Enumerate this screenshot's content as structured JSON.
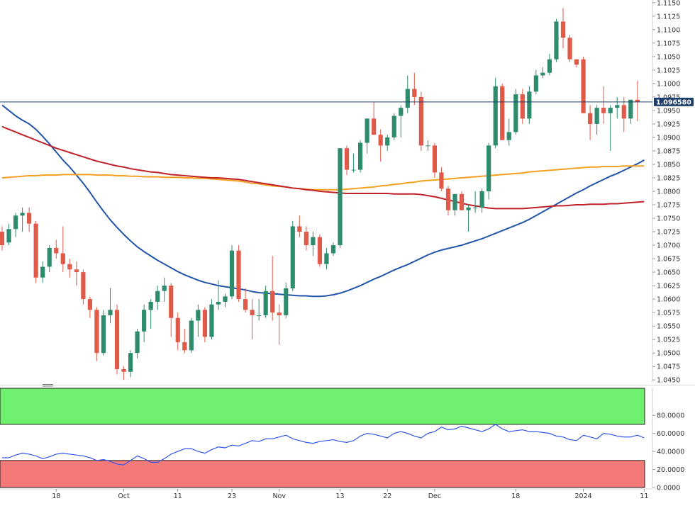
{
  "colors": {
    "bull": "#2e8b6e",
    "bear": "#e05a4a",
    "sma_fast": "#2255aa",
    "sma_mid": "#f5a020",
    "sma_slow": "#c0212a",
    "rsi_line": "#3355ee",
    "overbought_zone": "#6ef06e",
    "oversold_zone": "#f47a7a",
    "price_line": "#1e3e6a",
    "price_tag_bg": "#1e3e6a"
  },
  "chart_data": [
    {
      "type": "candlestick",
      "current_price_label": "1.096580",
      "current_price": 1.09658,
      "ylim": [
        1.0445,
        1.1155
      ],
      "y_ticks": [
        "1.1150",
        "1.1125",
        "1.1100",
        "1.1075",
        "1.1050",
        "1.1025",
        "1.1000",
        "1.0975",
        "1.0950",
        "1.0925",
        "1.0900",
        "1.0875",
        "1.0850",
        "1.0825",
        "1.0800",
        "1.0775",
        "1.0750",
        "1.0725",
        "1.0700",
        "1.0675",
        "1.0650",
        "1.0625",
        "1.0600",
        "1.0575",
        "1.0550",
        "1.0525",
        "1.0500",
        "1.0475",
        "1.0450"
      ],
      "x_ticks": [
        {
          "label": "18",
          "index": 8
        },
        {
          "label": "Oct",
          "index": 18
        },
        {
          "label": "11",
          "index": 26
        },
        {
          "label": "23",
          "index": 34
        },
        {
          "label": "Nov",
          "index": 41
        },
        {
          "label": "13",
          "index": 50
        },
        {
          "label": "22",
          "index": 57
        },
        {
          "label": "Dec",
          "index": 64
        },
        {
          "label": "18",
          "index": 76
        },
        {
          "label": "2024",
          "index": 86
        },
        {
          "label": "11",
          "index": 95
        }
      ],
      "candles": [
        [
          1.0725,
          1.0735,
          1.069,
          1.07
        ],
        [
          1.0705,
          1.074,
          1.07,
          1.073
        ],
        [
          1.073,
          1.076,
          1.0715,
          1.0755
        ],
        [
          1.0755,
          1.077,
          1.0725,
          1.076
        ],
        [
          1.076,
          1.077,
          1.0725,
          1.074
        ],
        [
          1.074,
          1.0745,
          1.063,
          1.064
        ],
        [
          1.064,
          1.067,
          1.063,
          1.066
        ],
        [
          1.066,
          1.07,
          1.065,
          1.0695
        ],
        [
          1.0695,
          1.071,
          1.0675,
          1.0685
        ],
        [
          1.0685,
          1.0735,
          1.065,
          1.0665
        ],
        [
          1.0665,
          1.0675,
          1.064,
          1.0655
        ],
        [
          1.0655,
          1.067,
          1.0625,
          1.065
        ],
        [
          1.065,
          1.0655,
          1.059,
          1.06
        ],
        [
          1.06,
          1.0605,
          1.0565,
          1.058
        ],
        [
          1.058,
          1.0585,
          1.0485,
          1.05
        ],
        [
          1.05,
          1.058,
          1.0495,
          1.057
        ],
        [
          1.057,
          1.062,
          1.0555,
          1.058
        ],
        [
          1.058,
          1.059,
          1.046,
          1.047
        ],
        [
          1.047,
          1.0475,
          1.045,
          1.0465
        ],
        [
          1.0465,
          1.0505,
          1.0455,
          1.05
        ],
        [
          1.05,
          1.0545,
          1.049,
          1.054
        ],
        [
          1.054,
          1.059,
          1.052,
          1.058
        ],
        [
          1.058,
          1.06,
          1.0545,
          1.0595
        ],
        [
          1.0595,
          1.0625,
          1.058,
          1.0615
        ],
        [
          1.0615,
          1.064,
          1.0595,
          1.0625
        ],
        [
          1.0625,
          1.063,
          1.053,
          1.0565
        ],
        [
          1.0565,
          1.0575,
          1.0505,
          1.052
        ],
        [
          1.052,
          1.0545,
          1.05,
          1.0505
        ],
        [
          1.0505,
          1.0565,
          1.05,
          1.056
        ],
        [
          1.056,
          1.059,
          1.053,
          1.058
        ],
        [
          1.058,
          1.0585,
          1.052,
          1.053
        ],
        [
          1.053,
          1.06,
          1.0525,
          1.059
        ],
        [
          1.059,
          1.0635,
          1.058,
          1.0595
        ],
        [
          1.0595,
          1.061,
          1.0585,
          1.0605
        ],
        [
          1.0605,
          1.07,
          1.06,
          1.069
        ],
        [
          1.069,
          1.07,
          1.0595,
          1.06
        ],
        [
          1.06,
          1.062,
          1.0575,
          1.058
        ],
        [
          1.058,
          1.06,
          1.0525,
          1.057
        ],
        [
          1.057,
          1.06,
          1.056,
          1.057
        ],
        [
          1.057,
          1.0625,
          1.0565,
          1.0615
        ],
        [
          1.0615,
          1.068,
          1.056,
          1.0575
        ],
        [
          1.0575,
          1.059,
          1.0515,
          1.057
        ],
        [
          1.057,
          1.063,
          1.0565,
          1.062
        ],
        [
          1.062,
          1.0745,
          1.0615,
          1.0735
        ],
        [
          1.0735,
          1.0755,
          1.0715,
          1.0725
        ],
        [
          1.0725,
          1.0735,
          1.069,
          1.07
        ],
        [
          1.07,
          1.0725,
          1.068,
          1.0715
        ],
        [
          1.0715,
          1.072,
          1.066,
          1.0665
        ],
        [
          1.0665,
          1.0695,
          1.0655,
          1.0685
        ],
        [
          1.0685,
          1.0705,
          1.068,
          1.07
        ],
        [
          1.07,
          1.088,
          1.0695,
          1.088
        ],
        [
          1.088,
          1.0885,
          1.083,
          1.084
        ],
        [
          1.084,
          1.087,
          1.0835,
          1.084
        ],
        [
          1.084,
          1.0895,
          1.0835,
          1.089
        ],
        [
          1.089,
          1.0935,
          1.087,
          1.0935
        ],
        [
          1.0935,
          1.0965,
          1.0905,
          1.0905
        ],
        [
          1.0905,
          1.0915,
          1.0855,
          1.0885
        ],
        [
          1.0885,
          1.0905,
          1.0875,
          1.09
        ],
        [
          1.09,
          1.0945,
          1.0895,
          1.094
        ],
        [
          1.094,
          1.096,
          1.09,
          1.0955
        ],
        [
          1.0955,
          1.1015,
          1.0945,
          1.099
        ],
        [
          1.099,
          1.102,
          1.096,
          1.0975
        ],
        [
          1.0975,
          1.0985,
          1.0875,
          1.0885
        ],
        [
          1.0885,
          1.0895,
          1.0875,
          1.0885
        ],
        [
          1.0885,
          1.089,
          1.0825,
          1.0835
        ],
        [
          1.0835,
          1.0845,
          1.08,
          1.0805
        ],
        [
          1.0805,
          1.081,
          1.0755,
          1.0765
        ],
        [
          1.0765,
          1.0795,
          1.0755,
          1.0795
        ],
        [
          1.0795,
          1.08,
          1.0765,
          1.0765
        ],
        [
          1.0765,
          1.0775,
          1.0725,
          1.077
        ],
        [
          1.077,
          1.08,
          1.076,
          1.077
        ],
        [
          1.077,
          1.0805,
          1.076,
          1.08
        ],
        [
          1.08,
          1.089,
          1.0785,
          1.0885
        ],
        [
          1.0885,
          1.101,
          1.088,
          1.0995
        ],
        [
          1.0995,
          1.1,
          1.0895,
          1.0895
        ],
        [
          1.0895,
          1.0935,
          1.0885,
          1.091
        ],
        [
          1.091,
          1.099,
          1.0905,
          1.098
        ],
        [
          1.098,
          1.099,
          1.0925,
          1.0935
        ],
        [
          1.0935,
          1.0995,
          1.0925,
          1.0985
        ],
        [
          1.0985,
          1.1025,
          1.098,
          1.1015
        ],
        [
          1.1015,
          1.103,
          1.101,
          1.102
        ],
        [
          1.102,
          1.1055,
          1.1015,
          1.1045
        ],
        [
          1.1045,
          1.112,
          1.104,
          1.1115
        ],
        [
          1.1115,
          1.114,
          1.1065,
          1.1085
        ],
        [
          1.1085,
          1.109,
          1.104,
          1.1045
        ],
        [
          1.1045,
          1.1045,
          1.103,
          1.1035
        ],
        [
          1.1045,
          1.105,
          1.0945,
          1.0945
        ],
        [
          1.0945,
          1.096,
          1.0895,
          1.0925
        ],
        [
          1.0925,
          1.096,
          1.0905,
          1.0955
        ],
        [
          1.0955,
          1.0995,
          1.0925,
          1.0945
        ],
        [
          1.0945,
          1.096,
          1.0875,
          1.0955
        ],
        [
          1.0955,
          1.0975,
          1.0935,
          1.096
        ],
        [
          1.096,
          1.0975,
          1.091,
          1.0935
        ],
        [
          1.0935,
          1.097,
          1.0925,
          1.097
        ],
        [
          1.097,
          1.1005,
          1.093,
          1.0966
        ]
      ],
      "series": [
        {
          "name": "",
          "color_key": "sma_fast",
          "values": [
            1.096,
            1.095,
            1.094,
            1.0932,
            1.0925,
            1.0915,
            1.0902,
            1.0888,
            1.0873,
            1.0858,
            1.0845,
            1.083,
            1.0815,
            1.0798,
            1.078,
            1.0763,
            1.0747,
            1.0733,
            1.072,
            1.0708,
            1.0697,
            1.0688,
            1.068,
            1.0672,
            1.0665,
            1.0658,
            1.0651,
            1.0645,
            1.064,
            1.0635,
            1.0631,
            1.0628,
            1.0625,
            1.0623,
            1.0621,
            1.0619,
            1.0617,
            1.0614,
            1.0612,
            1.0611,
            1.061,
            1.0609,
            1.0608,
            1.0607,
            1.0606,
            1.0606,
            1.0605,
            1.0605,
            1.0606,
            1.0608,
            1.0611,
            1.0615,
            1.062,
            1.0625,
            1.0631,
            1.0637,
            1.0642,
            1.0648,
            1.0654,
            1.0659,
            1.0664,
            1.067,
            1.0676,
            1.0682,
            1.0687,
            1.0691,
            1.0694,
            1.0697,
            1.07,
            1.0704,
            1.0708,
            1.0712,
            1.0717,
            1.0722,
            1.0727,
            1.0732,
            1.0737,
            1.0742,
            1.0748,
            1.0755,
            1.0762,
            1.0769,
            1.0776,
            1.0783,
            1.079,
            1.0797,
            1.0803,
            1.081,
            1.0816,
            1.0822,
            1.0828,
            1.0833,
            1.0839,
            1.0845,
            1.0851,
            1.0858
          ]
        },
        {
          "name": "",
          "color_key": "sma_mid",
          "values": [
            1.0825,
            1.0826,
            1.0827,
            1.0828,
            1.0829,
            1.0829,
            1.083,
            1.083,
            1.083,
            1.0831,
            1.0831,
            1.0831,
            1.0831,
            1.0831,
            1.083,
            1.083,
            1.083,
            1.0829,
            1.0829,
            1.0828,
            1.0828,
            1.0827,
            1.0827,
            1.0827,
            1.0826,
            1.0826,
            1.0826,
            1.0825,
            1.0825,
            1.0824,
            1.0824,
            1.0823,
            1.0822,
            1.0821,
            1.082,
            1.0819,
            1.0817,
            1.0815,
            1.0814,
            1.0812,
            1.081,
            1.0809,
            1.0808,
            1.0806,
            1.0805,
            1.0804,
            1.0803,
            1.0803,
            1.0803,
            1.0803,
            1.0803,
            1.0804,
            1.0805,
            1.0806,
            1.0807,
            1.0808,
            1.081,
            1.0811,
            1.0813,
            1.0814,
            1.0816,
            1.0817,
            1.0819,
            1.082,
            1.0821,
            1.0822,
            1.0823,
            1.0824,
            1.0825,
            1.0826,
            1.0827,
            1.0828,
            1.0829,
            1.083,
            1.0831,
            1.0832,
            1.0833,
            1.0834,
            1.0836,
            1.0837,
            1.0838,
            1.0839,
            1.084,
            1.0841,
            1.0842,
            1.0843,
            1.0844,
            1.0845,
            1.0845,
            1.0846,
            1.0846,
            1.0846,
            1.0847,
            1.0847,
            1.0847,
            1.0847
          ]
        },
        {
          "name": "",
          "color_key": "sma_slow",
          "values": [
            1.092,
            1.0915,
            1.091,
            1.0905,
            1.09,
            1.0895,
            1.089,
            1.0885,
            1.088,
            1.0876,
            1.0872,
            1.0868,
            1.0864,
            1.086,
            1.0856,
            1.0853,
            1.085,
            1.0847,
            1.0845,
            1.0842,
            1.084,
            1.0838,
            1.0836,
            1.0835,
            1.0833,
            1.0831,
            1.083,
            1.0829,
            1.0828,
            1.0827,
            1.0826,
            1.0825,
            1.0825,
            1.0824,
            1.0823,
            1.0822,
            1.082,
            1.0818,
            1.0816,
            1.0814,
            1.0812,
            1.081,
            1.0808,
            1.0806,
            1.0805,
            1.0803,
            1.0802,
            1.08,
            1.0799,
            1.0798,
            1.0797,
            1.0796,
            1.0796,
            1.0796,
            1.0796,
            1.0796,
            1.0796,
            1.0796,
            1.0795,
            1.0795,
            1.0795,
            1.0795,
            1.0794,
            1.0792,
            1.079,
            1.0787,
            1.0784,
            1.0781,
            1.0778,
            1.0775,
            1.0773,
            1.0771,
            1.0769,
            1.0768,
            1.0768,
            1.0768,
            1.0768,
            1.0768,
            1.0769,
            1.077,
            1.0771,
            1.0772,
            1.0773,
            1.0773,
            1.0774,
            1.0775,
            1.0775,
            1.0776,
            1.0776,
            1.0776,
            1.0777,
            1.0777,
            1.0778,
            1.0779,
            1.078,
            1.0781
          ]
        }
      ]
    },
    {
      "type": "line",
      "ylim": [
        0,
        110
      ],
      "y_ticks": [
        "80.0000",
        "60.0000",
        "40.0000",
        "20.0000",
        "0.0000"
      ],
      "overbought_level": 70,
      "oversold_level": 30,
      "series": [
        {
          "name": "",
          "color_key": "rsi_line",
          "values": [
            33,
            33,
            36,
            38,
            37,
            35,
            32,
            34,
            37,
            38,
            37,
            36,
            35,
            33,
            30,
            31,
            29,
            26,
            25,
            30,
            35,
            32,
            28,
            28,
            32,
            37,
            40,
            43,
            43,
            40,
            38,
            42,
            45,
            44,
            47,
            46,
            49,
            52,
            51,
            54,
            54,
            56,
            58,
            54,
            52,
            50,
            49,
            51,
            52,
            53,
            51,
            50,
            52,
            57,
            60,
            59,
            57,
            55,
            60,
            62,
            60,
            57,
            55,
            60,
            62,
            67,
            64,
            65,
            68,
            66,
            64,
            62,
            65,
            70,
            65,
            62,
            63,
            64,
            62,
            62,
            61,
            60,
            57,
            56,
            53,
            52,
            58,
            56,
            54,
            60,
            59,
            57,
            56,
            56,
            58,
            55
          ]
        }
      ]
    }
  ]
}
